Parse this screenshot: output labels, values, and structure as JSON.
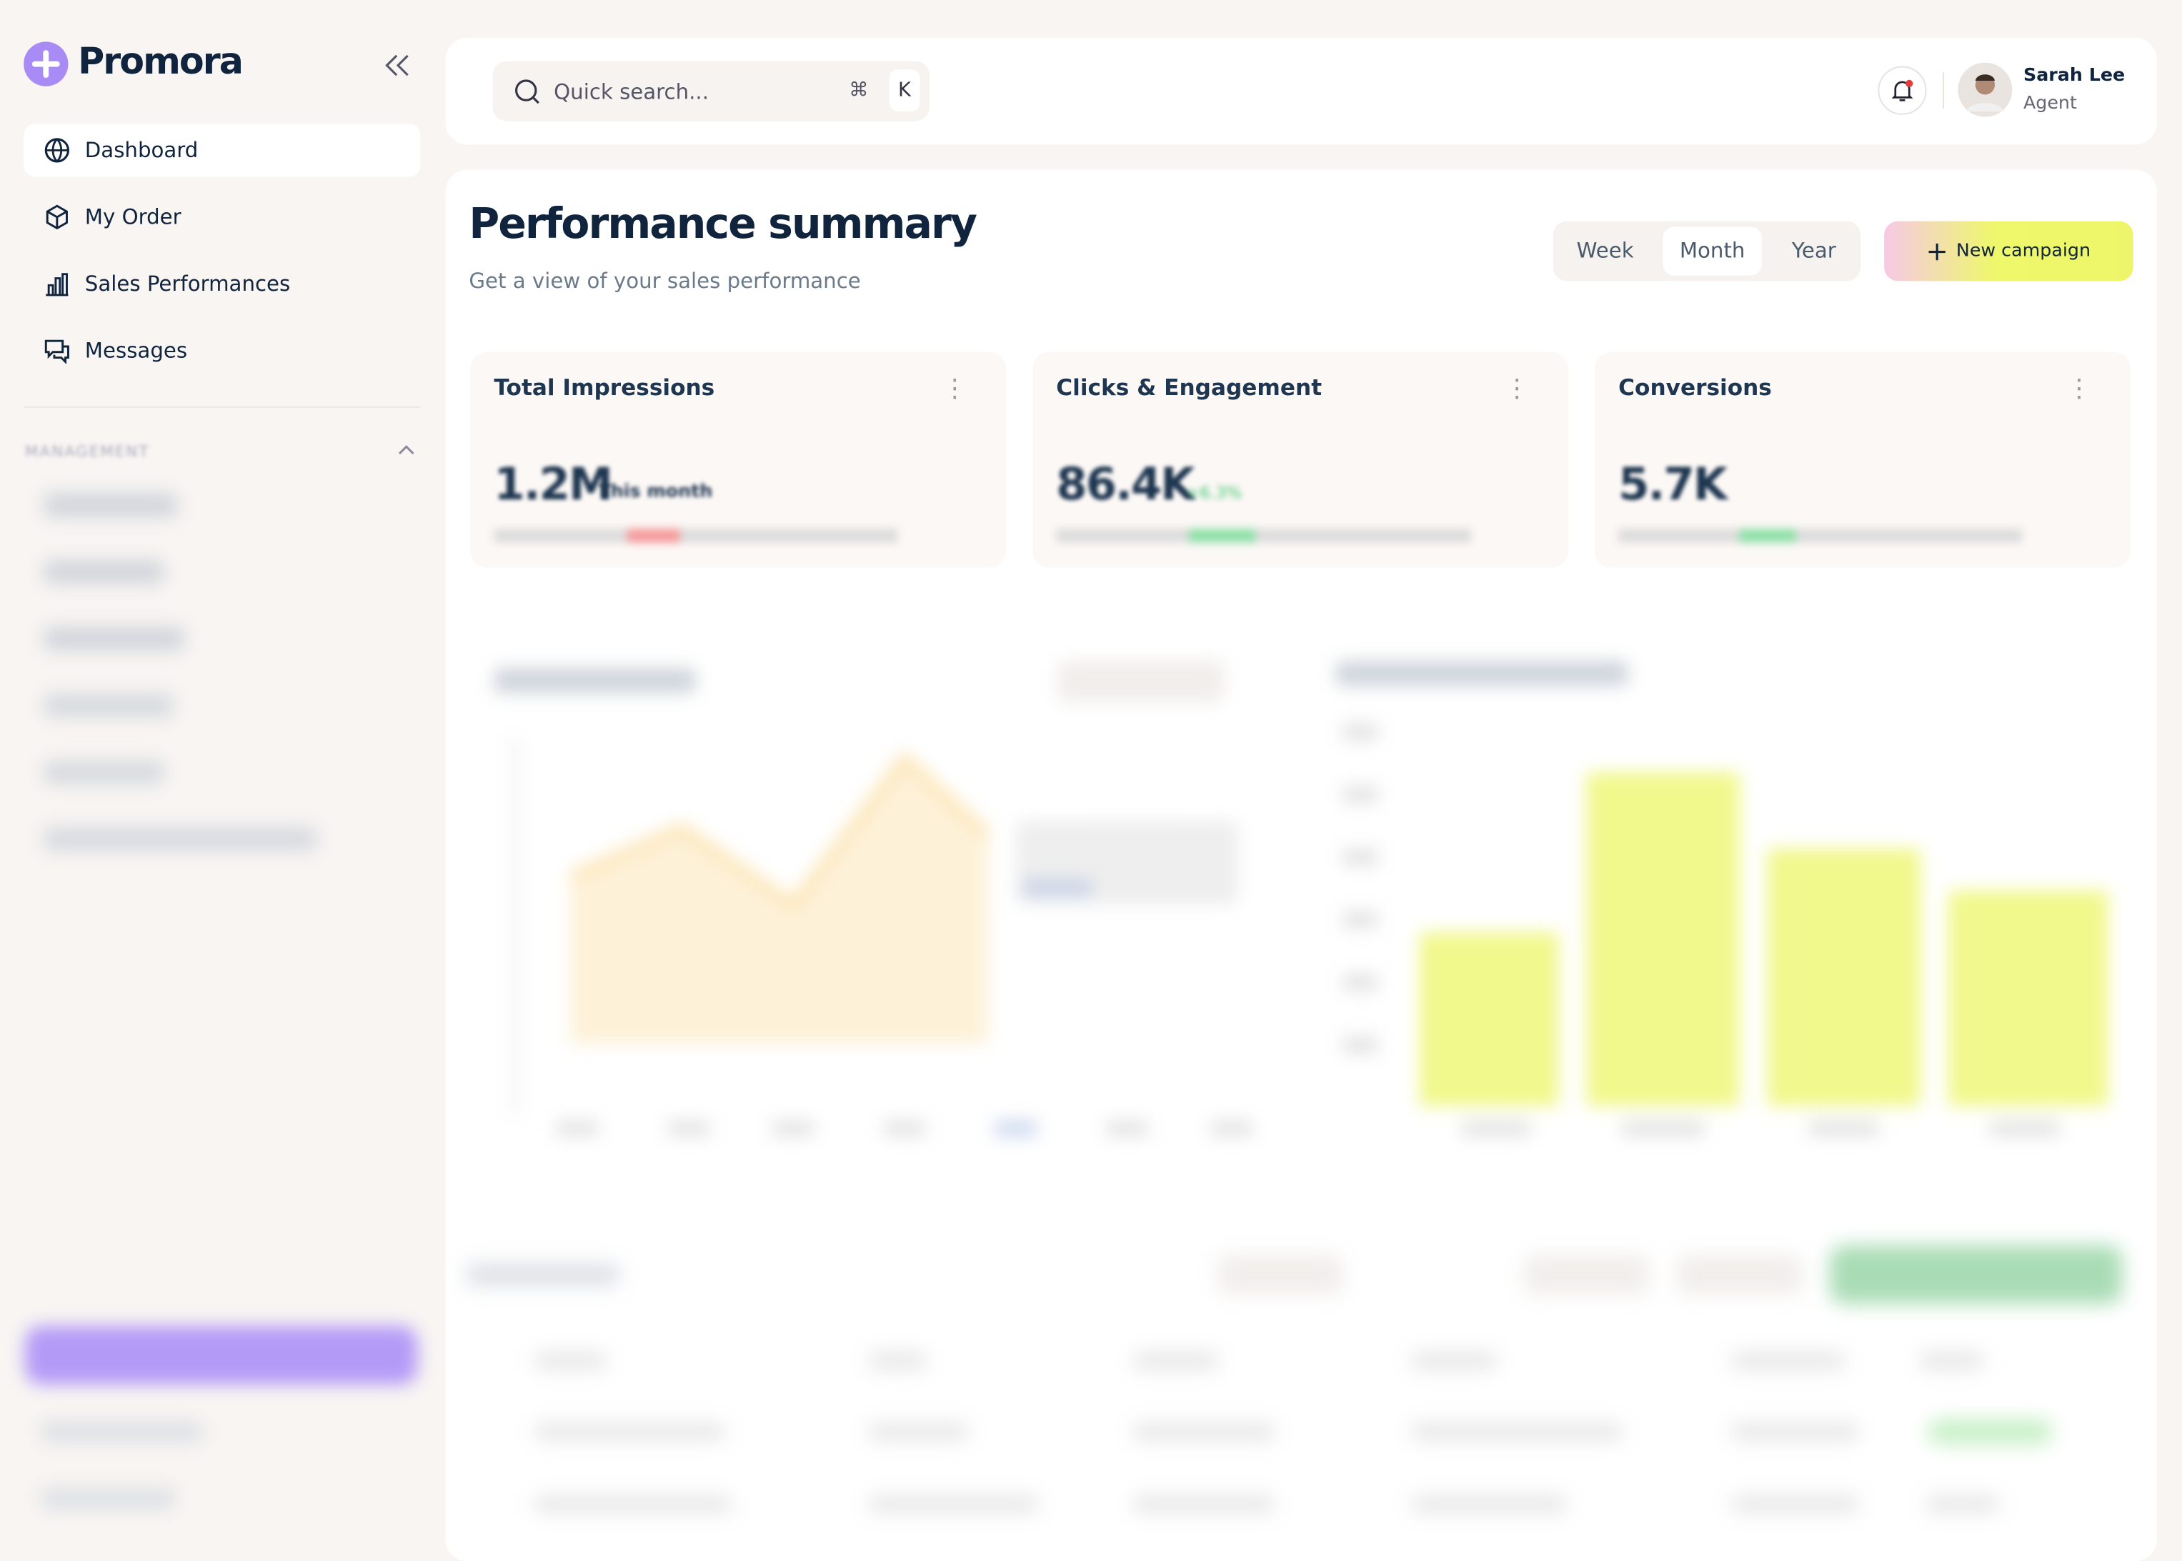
{
  "sidebar": {
    "brand": "Promora",
    "nav": [
      "Dashboard",
      "My Order",
      "Sales Performances",
      "Messages"
    ],
    "section": "MANAGEMENT"
  },
  "header": {
    "search_placeholder": "Quick search...",
    "shortcut": [
      "⌘",
      "K"
    ],
    "user": {
      "name": "Sarah Lee",
      "role": "Agent"
    }
  },
  "summary": {
    "title": "Performance summary",
    "subtitle": "Get a view of your sales performance",
    "periods": [
      "Week",
      "Month",
      "Year"
    ],
    "active_period": "Month",
    "button": "New campaign"
  },
  "cards": [
    {
      "title": "Total Impressions",
      "value": "1.2M",
      "note": "This month"
    },
    {
      "title": "Clicks & Engagement",
      "value": "86.4K",
      "note": "+6.3%"
    },
    {
      "title": "Conversions",
      "value": "5.7K"
    }
  ]
}
